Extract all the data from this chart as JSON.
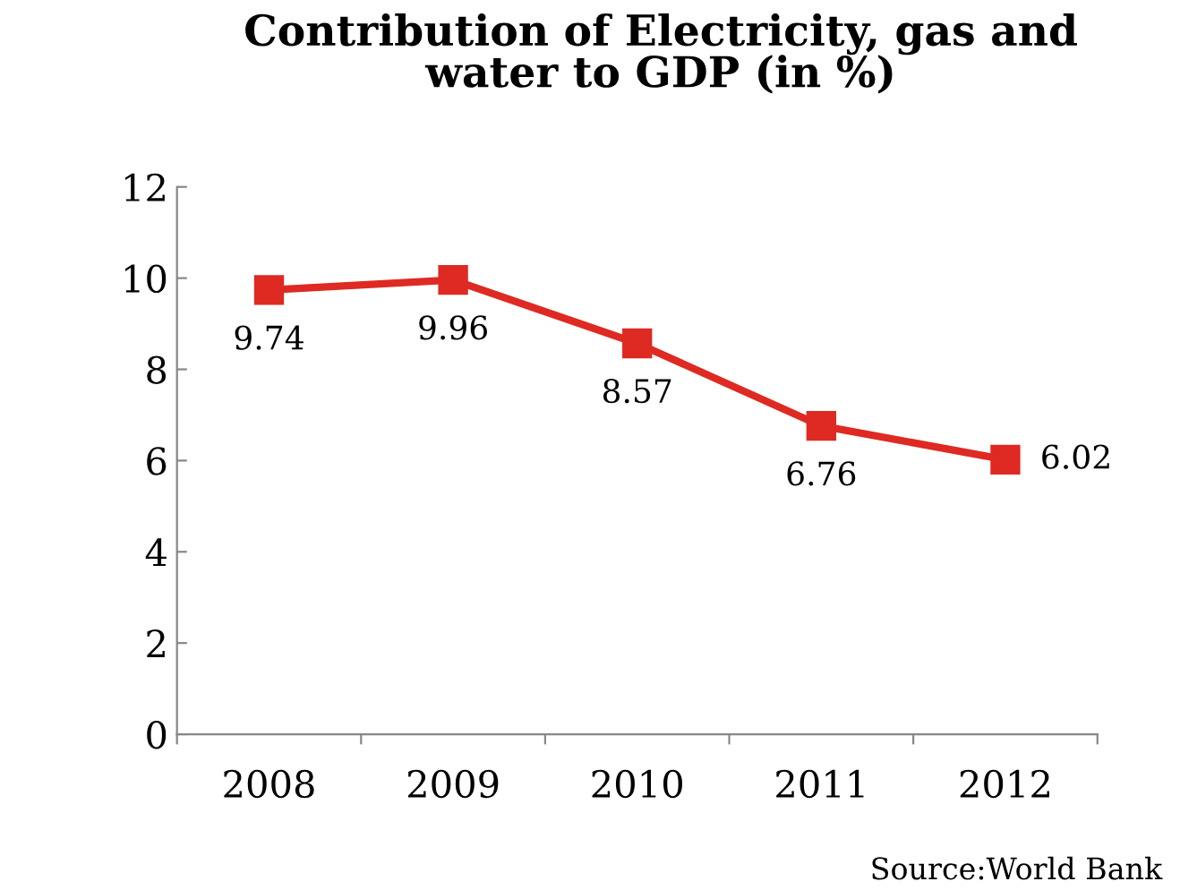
{
  "chart_data": {
    "type": "line",
    "title": "Contribution of Electricity, gas and\nwater to GDP (in %)",
    "categories": [
      "2008",
      "2009",
      "2010",
      "2011",
      "2012"
    ],
    "values": [
      9.74,
      9.96,
      8.57,
      6.76,
      6.02
    ],
    "color": "#de2a22",
    "marker": "square",
    "line_style": "solid",
    "data_labels": true,
    "ylim": [
      0,
      12
    ],
    "yticks": [
      0,
      2,
      4,
      6,
      8,
      10,
      12
    ],
    "grid": false,
    "legend": false,
    "annotations": [
      "Source:World Bank"
    ]
  }
}
